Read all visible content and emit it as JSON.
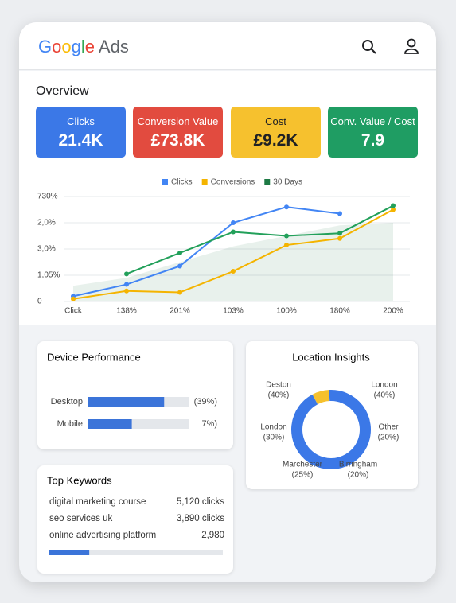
{
  "header": {
    "brand": "Google",
    "product": "Ads"
  },
  "overview": {
    "title": "Overview",
    "kpis": [
      {
        "label": "Clicks",
        "value": "21.4K",
        "color": "#3b78e7"
      },
      {
        "label": "Conversion Value",
        "value": "£73.8K",
        "color": "#e24b3f"
      },
      {
        "label": "Cost",
        "value": "£9.2K",
        "color": "#f6c12e"
      },
      {
        "label": "Conv. Value / Cost",
        "value": "7.9",
        "color": "#1f9d63"
      }
    ]
  },
  "chart_data": {
    "type": "line",
    "categories": [
      "Click",
      "138%",
      "201%",
      "103%",
      "100%",
      "180%",
      "200%"
    ],
    "series": [
      {
        "name": "Clicks",
        "color": "#4285f4",
        "values": [
          0.2,
          0.65,
          1.35,
          3.0,
          3.6,
          3.35,
          null
        ]
      },
      {
        "name": "Conversions",
        "color": "#f4b400",
        "values": [
          0.1,
          0.4,
          0.35,
          1.15,
          2.15,
          2.4,
          3.5
        ]
      },
      {
        "name": "30 Days",
        "color": "#1e7a45",
        "area": true,
        "values": [
          0.6,
          0.9,
          1.5,
          2.1,
          2.5,
          2.9,
          3.0
        ]
      },
      {
        "name": null,
        "color": "#22a05a",
        "values": [
          null,
          1.05,
          1.85,
          2.65,
          2.5,
          2.6,
          3.65
        ]
      }
    ],
    "ylim": [
      0,
      4
    ],
    "yticks": [
      0,
      {
        "value": 1,
        "label": "1,05%"
      },
      {
        "value": 2,
        "label": "3,0%"
      },
      {
        "value": 3,
        "label": "2,0%"
      },
      {
        "value": 4,
        "label": "730%"
      }
    ],
    "grid": true
  },
  "device": {
    "title": "Device Performance",
    "rows": [
      {
        "label": "Desktop",
        "bar": 75,
        "text": "(39%)"
      },
      {
        "label": "Mobile",
        "bar": 43,
        "text": "7%)"
      }
    ]
  },
  "keywords": {
    "title": "Top Keywords",
    "rows": [
      [
        "digital marketing course",
        "5,120 clicks"
      ],
      [
        "seo services uk",
        "3,890 clicks"
      ],
      [
        "online advertising platform",
        "2,980"
      ]
    ],
    "progress": 23
  },
  "location": {
    "title": "Location Insights",
    "labels": [
      [
        "Deston",
        "(40%)"
      ],
      [
        "London",
        "(40%)"
      ],
      [
        "London",
        "(30%)"
      ],
      [
        "Other",
        "(20%)"
      ],
      [
        "Marchester",
        "(25%)"
      ],
      [
        "Birringham",
        "(20%)"
      ]
    ],
    "segments": [
      {
        "value": 7,
        "color": "#f6c12e"
      },
      {
        "value": 93,
        "color": "#3b78e7"
      }
    ]
  }
}
